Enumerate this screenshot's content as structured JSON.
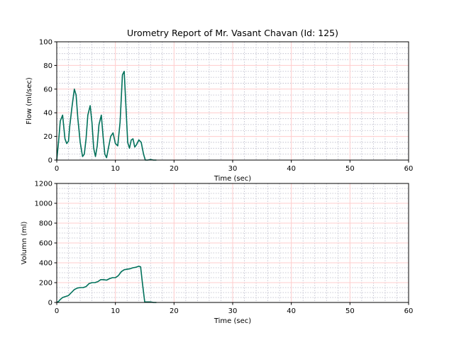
{
  "title": "Urometry Report of Mr. Vasant   Chavan (Id: 125)",
  "colors": {
    "series": "#00705a",
    "major_grid": "#ffcccc",
    "minor_grid": "#b8b8c8",
    "axis": "#000000",
    "background": "#ffffff"
  },
  "chart_data": [
    {
      "type": "line",
      "xlabel": "Time (sec)",
      "ylabel": "Flow (ml/sec)",
      "xlim": [
        0,
        60
      ],
      "ylim": [
        0,
        100
      ],
      "xticks": [
        0,
        10,
        20,
        30,
        40,
        50,
        60
      ],
      "yticks": [
        0,
        20,
        40,
        60,
        80,
        100
      ],
      "grid": true,
      "series": [
        {
          "x": [
            0,
            0.3,
            0.6,
            1.0,
            1.4,
            1.7,
            2.0,
            2.2,
            2.6,
            3.0,
            3.3,
            3.6,
            4.0,
            4.4,
            4.7,
            5.0,
            5.3,
            5.7,
            6.0,
            6.3,
            6.6,
            6.9,
            7.2,
            7.6,
            7.9,
            8.2,
            8.5,
            8.8,
            9.2,
            9.6,
            10.0,
            10.4,
            10.8,
            11.2,
            11.5,
            11.8,
            12.1,
            12.4,
            12.7,
            13.0,
            13.3,
            13.6,
            14.0,
            14.4,
            14.8,
            15.1,
            15.5,
            16.0,
            16.5,
            17.0
          ],
          "y": [
            0,
            15,
            33,
            38,
            18,
            14,
            16,
            28,
            45,
            60,
            55,
            35,
            15,
            3,
            5,
            18,
            38,
            46,
            32,
            10,
            3,
            12,
            30,
            38,
            20,
            5,
            2,
            10,
            20,
            23,
            14,
            12,
            32,
            72,
            75,
            45,
            15,
            10,
            17,
            18,
            11,
            13,
            17,
            15,
            5,
            0,
            0,
            0.5,
            0,
            0
          ]
        }
      ]
    },
    {
      "type": "line",
      "xlabel": "Time (sec)",
      "ylabel": "Volumn (ml)",
      "xlim": [
        0,
        60
      ],
      "ylim": [
        0,
        1200
      ],
      "xticks": [
        0,
        10,
        20,
        30,
        40,
        50,
        60
      ],
      "yticks": [
        0,
        200,
        400,
        600,
        800,
        1000,
        1200
      ],
      "grid": true,
      "series": [
        {
          "x": [
            0,
            0.3,
            0.6,
            1.0,
            1.5,
            2.0,
            2.5,
            3.0,
            3.5,
            4.0,
            4.5,
            5.0,
            5.5,
            6.0,
            6.5,
            7.0,
            7.5,
            8.0,
            8.5,
            9.0,
            9.5,
            10.0,
            10.5,
            11.0,
            11.5,
            12.0,
            12.5,
            13.0,
            13.5,
            14.0,
            14.3,
            14.6,
            15.0,
            15.3,
            16.0,
            16.5,
            17.0
          ],
          "y": [
            0,
            10,
            30,
            50,
            60,
            70,
            100,
            130,
            145,
            150,
            150,
            160,
            190,
            200,
            200,
            210,
            230,
            230,
            225,
            240,
            250,
            250,
            270,
            310,
            330,
            335,
            340,
            350,
            355,
            365,
            360,
            200,
            5,
            5,
            5,
            0,
            0
          ]
        }
      ]
    }
  ]
}
